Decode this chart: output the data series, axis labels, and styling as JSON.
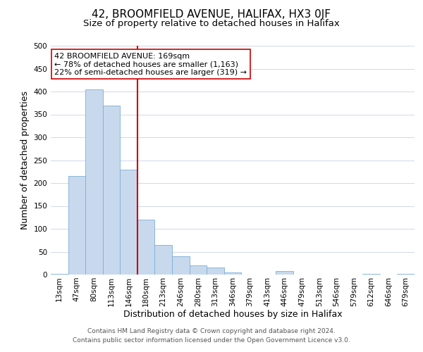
{
  "title": "42, BROOMFIELD AVENUE, HALIFAX, HX3 0JF",
  "subtitle": "Size of property relative to detached houses in Halifax",
  "xlabel": "Distribution of detached houses by size in Halifax",
  "ylabel": "Number of detached properties",
  "bar_labels": [
    "13sqm",
    "47sqm",
    "80sqm",
    "113sqm",
    "146sqm",
    "180sqm",
    "213sqm",
    "246sqm",
    "280sqm",
    "313sqm",
    "346sqm",
    "379sqm",
    "413sqm",
    "446sqm",
    "479sqm",
    "513sqm",
    "546sqm",
    "579sqm",
    "612sqm",
    "646sqm",
    "679sqm"
  ],
  "bar_values": [
    2,
    215,
    405,
    370,
    230,
    120,
    65,
    40,
    20,
    15,
    5,
    0,
    0,
    8,
    0,
    0,
    0,
    0,
    2,
    0,
    2
  ],
  "bar_color": "#c8d9ed",
  "bar_edge_color": "#7bafd4",
  "vline_color": "#cc0000",
  "vline_pos": 4.5,
  "annotation_title": "42 BROOMFIELD AVENUE: 169sqm",
  "annotation_line1": "← 78% of detached houses are smaller (1,163)",
  "annotation_line2": "22% of semi-detached houses are larger (319) →",
  "annotation_box_color": "#ffffff",
  "annotation_box_edge": "#cc0000",
  "ylim": [
    0,
    500
  ],
  "yticks": [
    0,
    50,
    100,
    150,
    200,
    250,
    300,
    350,
    400,
    450,
    500
  ],
  "footnote1": "Contains HM Land Registry data © Crown copyright and database right 2024.",
  "footnote2": "Contains public sector information licensed under the Open Government Licence v3.0.",
  "bg_color": "#ffffff",
  "grid_color": "#d0d8e8",
  "title_fontsize": 11,
  "subtitle_fontsize": 9.5,
  "axis_label_fontsize": 9,
  "tick_fontsize": 7.5,
  "annotation_fontsize": 8,
  "footnote_fontsize": 6.5
}
